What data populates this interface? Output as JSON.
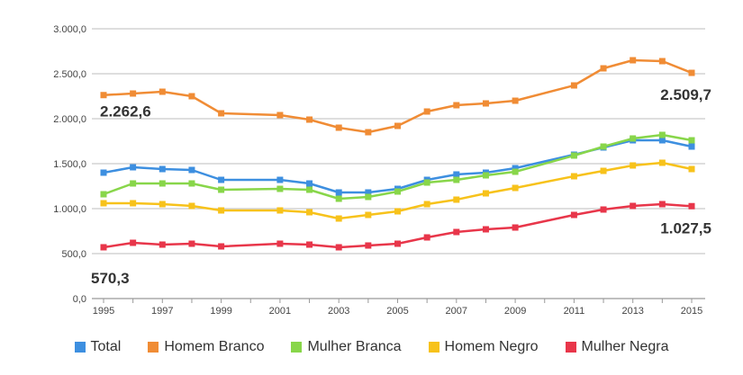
{
  "chart_data": {
    "type": "line",
    "title": "",
    "xlabel": "",
    "ylabel": "",
    "ylim": [
      0,
      3000
    ],
    "y_ticks": [
      "0,0",
      "500,0",
      "1.000,0",
      "1.500,0",
      "2.000,0",
      "2.500,0",
      "3.000,0"
    ],
    "y_tick_values": [
      0,
      500,
      1000,
      1500,
      2000,
      2500,
      3000
    ],
    "x": [
      1995,
      1996,
      1997,
      1998,
      1999,
      2001,
      2002,
      2003,
      2004,
      2005,
      2006,
      2007,
      2008,
      2009,
      2011,
      2012,
      2013,
      2014,
      2015
    ],
    "x_ticks": [
      "1995",
      "1997",
      "1999",
      "2001",
      "2003",
      "2005",
      "2007",
      "2009",
      "2011",
      "2013",
      "2015"
    ],
    "grid": true,
    "legend_position": "bottom",
    "series": [
      {
        "name": "Total",
        "color": "#3d8fe0",
        "values": [
          1400,
          1460,
          1440,
          1430,
          1320,
          1320,
          1280,
          1180,
          1180,
          1220,
          1320,
          1380,
          1400,
          1450,
          1600,
          1680,
          1760,
          1760,
          1690
        ]
      },
      {
        "name": "Homem Branco",
        "color": "#f08c35",
        "values": [
          2262.6,
          2280,
          2300,
          2250,
          2060,
          2040,
          1990,
          1900,
          1850,
          1920,
          2080,
          2150,
          2170,
          2200,
          2370,
          2560,
          2650,
          2640,
          2509.7
        ]
      },
      {
        "name": "Mulher Branca",
        "color": "#88d64a",
        "values": [
          1160,
          1280,
          1280,
          1280,
          1210,
          1220,
          1210,
          1110,
          1130,
          1190,
          1290,
          1320,
          1370,
          1410,
          1590,
          1690,
          1780,
          1820,
          1760
        ]
      },
      {
        "name": "Homem Negro",
        "color": "#f7c21b",
        "values": [
          1060,
          1060,
          1050,
          1030,
          980,
          980,
          960,
          890,
          930,
          970,
          1050,
          1100,
          1170,
          1230,
          1360,
          1420,
          1480,
          1510,
          1440
        ]
      },
      {
        "name": "Mulher Negra",
        "color": "#e8364a",
        "values": [
          570.3,
          620,
          600,
          610,
          580,
          610,
          600,
          570,
          590,
          610,
          680,
          740,
          770,
          790,
          930,
          990,
          1030,
          1050,
          1027.5
        ]
      }
    ],
    "annotations": [
      {
        "text": "2.262,6",
        "series": "Homem Branco",
        "x": 1995
      },
      {
        "text": "2.509,7",
        "series": "Homem Branco",
        "x": 2015
      },
      {
        "text": "570,3",
        "series": "Mulher Negra",
        "x": 1995
      },
      {
        "text": "1.027,5",
        "series": "Mulher Negra",
        "x": 2015
      }
    ]
  }
}
